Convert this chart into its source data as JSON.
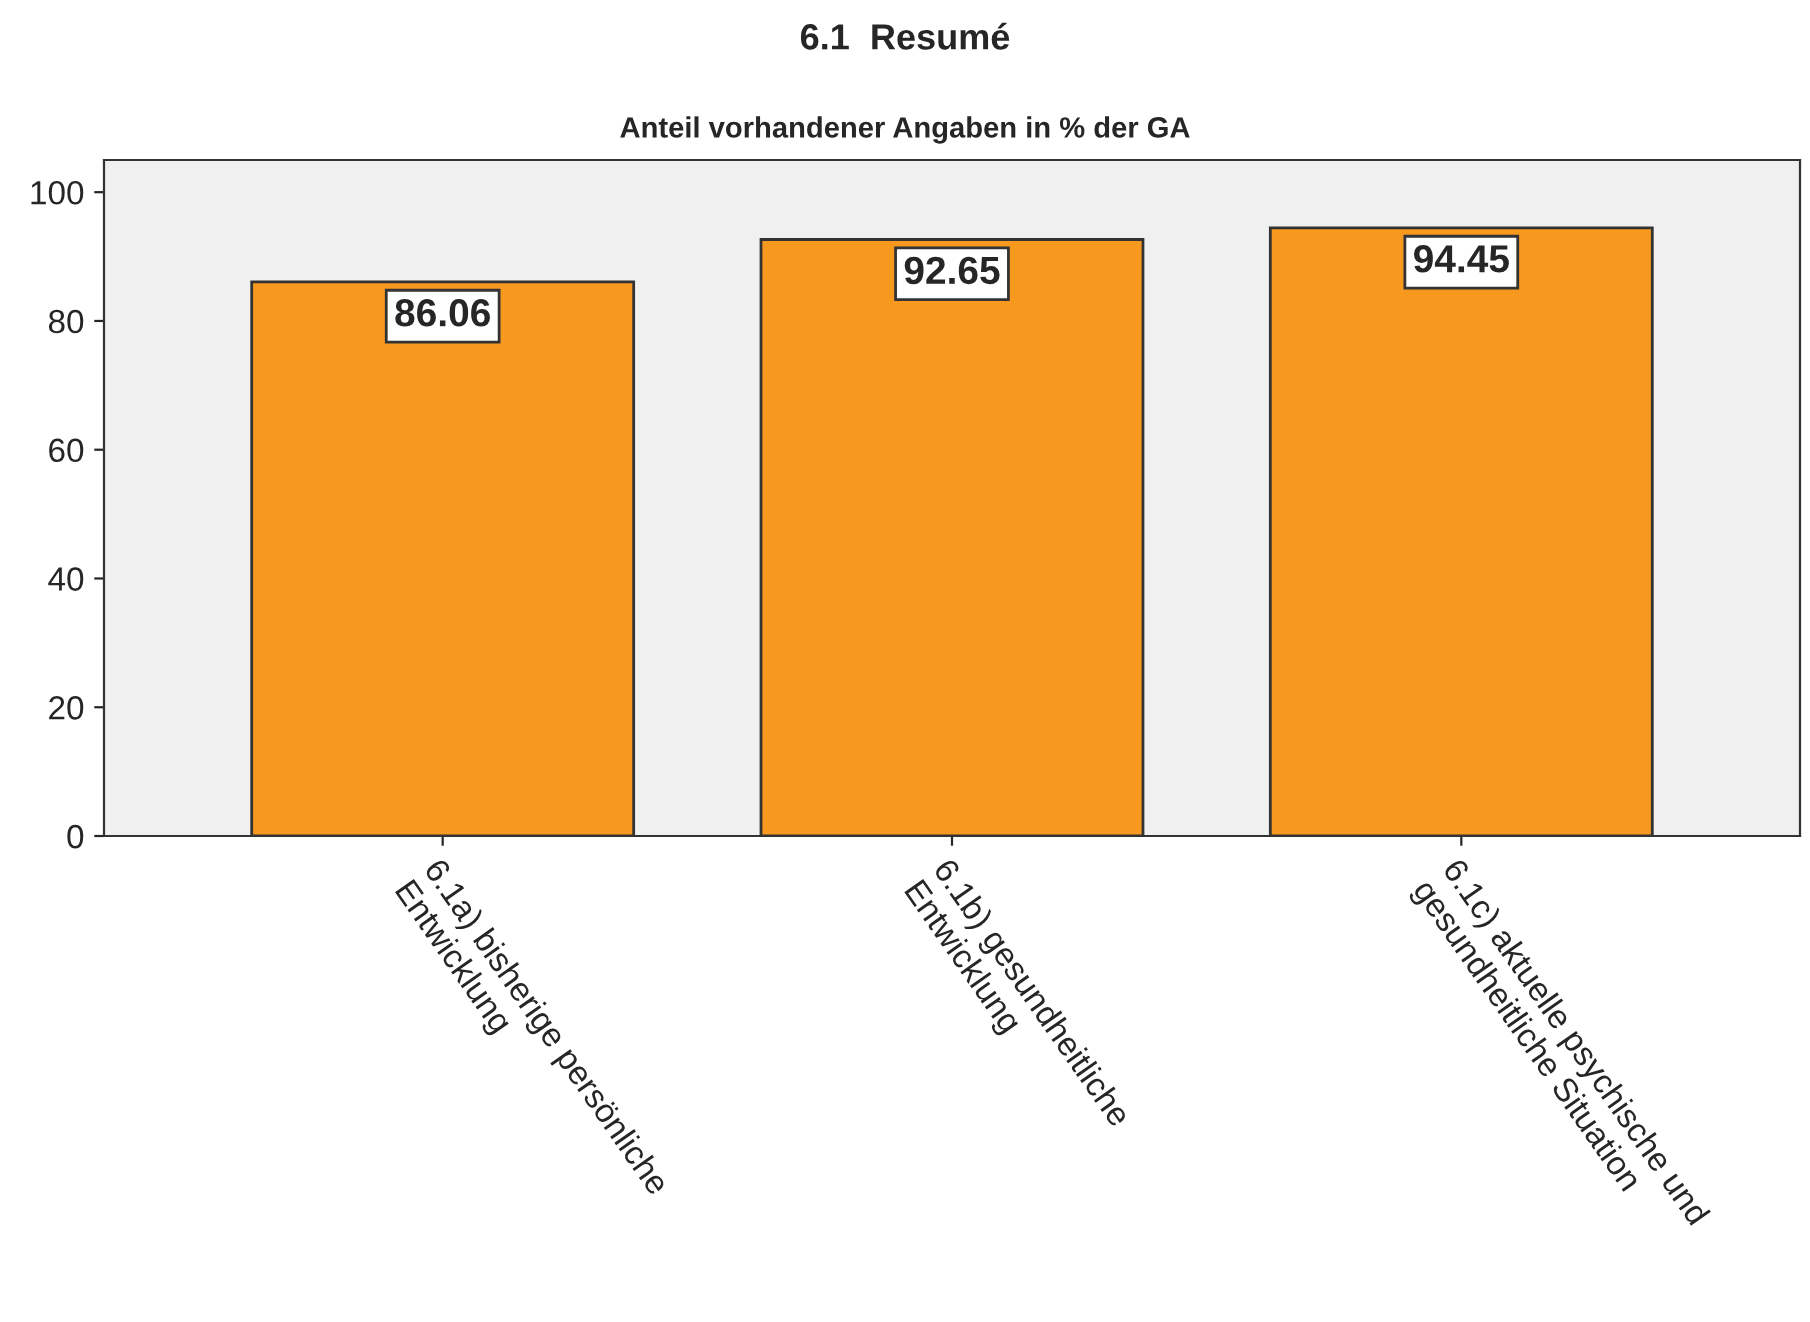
{
  "chart_data": {
    "type": "bar",
    "title": "6.1  Resumé",
    "subtitle": "Anteil vorhandener Angaben in % der GA",
    "categories": [
      "6.1a) bisherige persönliche\nEntwicklung",
      "6.1b) gesundheitliche\nEntwicklung",
      "6.1c) aktuelle psychische und\ngesundheitliche Situation"
    ],
    "values": [
      86.06,
      92.65,
      94.45
    ],
    "color": "#f7991f",
    "ylim": [
      0,
      105
    ],
    "yticks": [
      0,
      20,
      40,
      60,
      80,
      100
    ],
    "grid": false,
    "data_labels": true
  }
}
